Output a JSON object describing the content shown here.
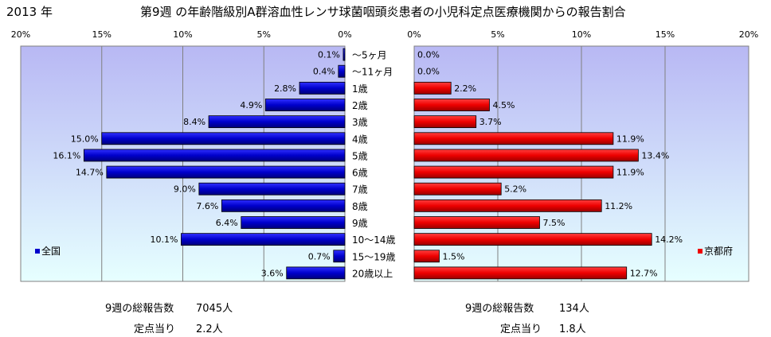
{
  "header": {
    "year": "2013 年",
    "title": "第9週 の年齢階級別A群溶血性レンサ球菌咽頭炎患者の小児科定点医療機関からの報告割合"
  },
  "chart_data": [
    {
      "type": "bar",
      "orientation": "horizontal",
      "direction": "leftward",
      "region": "全国",
      "legend": "全国",
      "legend_position": "bottom-left",
      "categories": [
        "～5ヶ月",
        "～11ヶ月",
        "1歳",
        "2歳",
        "3歳",
        "4歳",
        "5歳",
        "6歳",
        "7歳",
        "8歳",
        "9歳",
        "10～14歳",
        "15～19歳",
        "20歳以上"
      ],
      "values": [
        0.1,
        0.4,
        2.8,
        4.9,
        8.4,
        15.0,
        16.1,
        14.7,
        9.0,
        7.6,
        6.4,
        10.1,
        0.7,
        3.6
      ],
      "data_labels": [
        "0.1%",
        "0.4%",
        "2.8%",
        "4.9%",
        "8.4%",
        "15.0%",
        "16.1%",
        "14.7%",
        "9.0%",
        "7.6%",
        "6.4%",
        "10.1%",
        "0.7%",
        "3.6%"
      ],
      "xlim": [
        0,
        20
      ],
      "ticks": [
        "0%",
        "5%",
        "10%",
        "15%",
        "20%"
      ],
      "grid": true,
      "color": "#0000cc"
    },
    {
      "type": "bar",
      "orientation": "horizontal",
      "direction": "rightward",
      "region": "京都府",
      "legend": "京都府",
      "legend_position": "bottom-right",
      "categories": [
        "～5ヶ月",
        "～11ヶ月",
        "1歳",
        "2歳",
        "3歳",
        "4歳",
        "5歳",
        "6歳",
        "7歳",
        "8歳",
        "9歳",
        "10～14歳",
        "15～19歳",
        "20歳以上"
      ],
      "values": [
        0.0,
        0.0,
        2.2,
        4.5,
        3.7,
        11.9,
        13.4,
        11.9,
        5.2,
        11.2,
        7.5,
        14.2,
        1.5,
        12.7
      ],
      "data_labels": [
        "0.0%",
        "0.0%",
        "2.2%",
        "4.5%",
        "3.7%",
        "11.9%",
        "13.4%",
        "11.9%",
        "5.2%",
        "11.2%",
        "7.5%",
        "14.2%",
        "1.5%",
        "12.7%"
      ],
      "xlim": [
        0,
        20
      ],
      "ticks": [
        "0%",
        "5%",
        "10%",
        "15%",
        "20%"
      ],
      "grid": true,
      "color": "#ee0000"
    }
  ],
  "summary": {
    "national": {
      "total_label": "9週の総報告数",
      "total_value": "7045人",
      "per_label": "定点当り",
      "per_value": "2.2人"
    },
    "kyoto": {
      "total_label": "9週の総報告数",
      "total_value": "134人",
      "per_label": "定点当り",
      "per_value": "1.8人"
    }
  },
  "colors": {
    "plot_gradient_top": "#b8b8f4",
    "plot_gradient_bottom": "#e6ffff",
    "national_bar": "#0000cc",
    "kyoto_bar": "#ee0000"
  }
}
